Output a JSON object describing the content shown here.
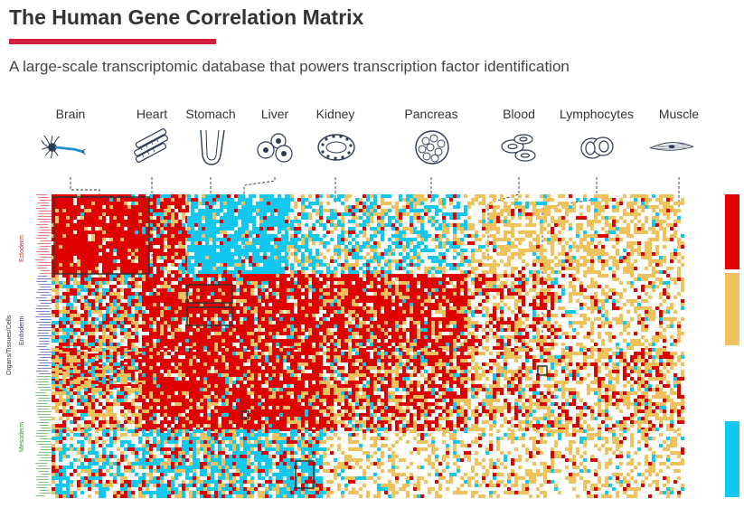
{
  "header": {
    "title": "The Human Gene Correlation Matrix",
    "subtitle": "A large-scale transcriptomic database that powers transcription factor identification"
  },
  "tissues": [
    {
      "label": "Brain",
      "icon": "neuron-icon"
    },
    {
      "label": "Heart",
      "icon": "heart-muscle-icon"
    },
    {
      "label": "Stomach",
      "icon": "stomach-icon"
    },
    {
      "label": "Liver",
      "icon": "liver-cells-icon"
    },
    {
      "label": "Kidney",
      "icon": "kidney-tubule-icon"
    },
    {
      "label": "Pancreas",
      "icon": "pancreas-cells-icon"
    },
    {
      "label": "Blood",
      "icon": "red-blood-cells-icon"
    },
    {
      "label": "Lymphocytes",
      "icon": "lymphocyte-icon"
    },
    {
      "label": "Muscle",
      "icon": "muscle-cell-icon"
    }
  ],
  "germ_layers": [
    {
      "label": "Ectoderm",
      "color": "#e02020"
    },
    {
      "label": "Endoderm",
      "color": "#2a2aa8"
    },
    {
      "label": "Mesoderm",
      "color": "#2a9a2a"
    }
  ],
  "axis": {
    "label": "Organs/Tissues/Cells"
  },
  "colors": {
    "high": "#e00000",
    "mid": "#f0c25c",
    "low": "#12c8f0",
    "accent": "#d21f3c"
  }
}
